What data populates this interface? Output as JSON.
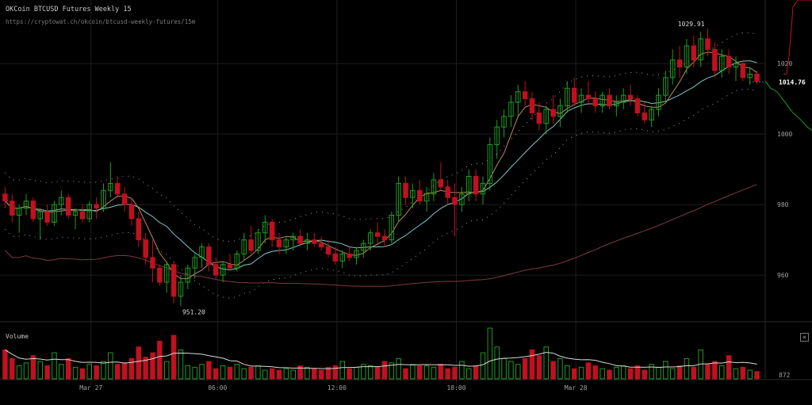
{
  "header": {
    "title": "OKCoin BTCUSD Futures Weekly 15",
    "subtitle": "https://cryptowat.ch/okcoin/btcusd-weekly-futures/15m"
  },
  "volume_panel": {
    "label": "Volume",
    "close_glyph": "×",
    "axis_label": "872"
  },
  "colors": {
    "background": "#000000",
    "grid": "#1e1e1e",
    "up": "#1f9c1f",
    "down": "#c0111f",
    "ma_short": "#b98a5e",
    "ma_mid": "#7fc6c6",
    "ma_long": "#7a3a44",
    "envelope": "#9a9a9a",
    "volume_ma": "#d8d8d8",
    "depth_bid": "#1f9c1f",
    "depth_ask": "#c0111f"
  },
  "chart_data": {
    "type": "candlestick",
    "interval": "15m",
    "y_axis": {
      "ticks": [
        960,
        980,
        1000,
        1020
      ],
      "range": [
        947,
        1038
      ]
    },
    "x_axis": {
      "ticks": [
        "Mar 27",
        "06:00",
        "12:00",
        "18:00",
        "Mar 28"
      ]
    },
    "annotations": {
      "high_label": "1029.91",
      "low_label": "951.20",
      "last_price": "1014.76"
    },
    "candles": [
      [
        983,
        985,
        979,
        981
      ],
      [
        981,
        983,
        975,
        977
      ],
      [
        977,
        980,
        972,
        979
      ],
      [
        979,
        983,
        977,
        981
      ],
      [
        981,
        982,
        975,
        976
      ],
      [
        976,
        979,
        970,
        978
      ],
      [
        978,
        980,
        974,
        975
      ],
      [
        975,
        981,
        974,
        980
      ],
      [
        980,
        984,
        977,
        982
      ],
      [
        982,
        983,
        976,
        977
      ],
      [
        977,
        979,
        973,
        978
      ],
      [
        978,
        980,
        975,
        976
      ],
      [
        976,
        981,
        975,
        980
      ],
      [
        980,
        982,
        976,
        979
      ],
      [
        979,
        986,
        978,
        984
      ],
      [
        984,
        992,
        982,
        986
      ],
      [
        986,
        988,
        982,
        983
      ],
      [
        983,
        985,
        978,
        980
      ],
      [
        980,
        982,
        974,
        976
      ],
      [
        976,
        978,
        968,
        970
      ],
      [
        970,
        972,
        963,
        965
      ],
      [
        965,
        970,
        958,
        962
      ],
      [
        962,
        963,
        957,
        958
      ],
      [
        958,
        964,
        955,
        963
      ],
      [
        963,
        964,
        952,
        954
      ],
      [
        954,
        960,
        951.2,
        958
      ],
      [
        958,
        963,
        956,
        962
      ],
      [
        962,
        966,
        959,
        965
      ],
      [
        965,
        969,
        962,
        968
      ],
      [
        968,
        969,
        961,
        963
      ],
      [
        963,
        965,
        959,
        960
      ],
      [
        960,
        964,
        958,
        963
      ],
      [
        963,
        966,
        961,
        962
      ],
      [
        962,
        967,
        961,
        966
      ],
      [
        966,
        972,
        964,
        970
      ],
      [
        970,
        974,
        966,
        967
      ],
      [
        967,
        973,
        966,
        972
      ],
      [
        972,
        977,
        969,
        975
      ],
      [
        975,
        976,
        968,
        970
      ],
      [
        970,
        972,
        966,
        968
      ],
      [
        968,
        971,
        966,
        970
      ],
      [
        970,
        972,
        967,
        971
      ],
      [
        971,
        973,
        968,
        969
      ],
      [
        969,
        972,
        967,
        970
      ],
      [
        970,
        972,
        968,
        969
      ],
      [
        969,
        971,
        967,
        968
      ],
      [
        968,
        970,
        965,
        966
      ],
      [
        966,
        968,
        963,
        964
      ],
      [
        964,
        967,
        962,
        966
      ],
      [
        966,
        968,
        964,
        965
      ],
      [
        965,
        968,
        963,
        967
      ],
      [
        967,
        970,
        965,
        969
      ],
      [
        969,
        973,
        967,
        972
      ],
      [
        972,
        975,
        969,
        971
      ],
      [
        971,
        973,
        968,
        970
      ],
      [
        970,
        978,
        969,
        977
      ],
      [
        977,
        988,
        975,
        986
      ],
      [
        986,
        988,
        980,
        982
      ],
      [
        982,
        986,
        979,
        984
      ],
      [
        984,
        987,
        980,
        981
      ],
      [
        981,
        985,
        978,
        983
      ],
      [
        983,
        989,
        981,
        987
      ],
      [
        987,
        992,
        984,
        985
      ],
      [
        985,
        987,
        980,
        982
      ],
      [
        982,
        986,
        971,
        980
      ],
      [
        980,
        985,
        978,
        983
      ],
      [
        983,
        990,
        981,
        988
      ],
      [
        988,
        990,
        981,
        983
      ],
      [
        983,
        988,
        980,
        986
      ],
      [
        986,
        999,
        984,
        997
      ],
      [
        997,
        1004,
        993,
        1002
      ],
      [
        1002,
        1007,
        999,
        1005
      ],
      [
        1005,
        1011,
        1002,
        1009
      ],
      [
        1009,
        1014,
        1005,
        1012
      ],
      [
        1012,
        1015,
        1008,
        1010
      ],
      [
        1010,
        1012,
        1004,
        1006
      ],
      [
        1006,
        1009,
        1001,
        1003
      ],
      [
        1003,
        1008,
        1000,
        1007
      ],
      [
        1007,
        1011,
        1003,
        1005
      ],
      [
        1005,
        1010,
        1002,
        1008
      ],
      [
        1008,
        1015,
        1006,
        1013
      ],
      [
        1013,
        1016,
        1008,
        1009
      ],
      [
        1009,
        1013,
        1006,
        1011
      ],
      [
        1011,
        1015,
        1008,
        1010
      ],
      [
        1010,
        1012,
        1006,
        1008
      ],
      [
        1008,
        1012,
        1006,
        1011
      ],
      [
        1011,
        1013,
        1007,
        1008
      ],
      [
        1008,
        1011,
        1005,
        1009
      ],
      [
        1009,
        1013,
        1007,
        1011
      ],
      [
        1011,
        1014,
        1008,
        1010
      ],
      [
        1010,
        1011,
        1005,
        1006
      ],
      [
        1006,
        1009,
        1003,
        1004
      ],
      [
        1004,
        1008,
        1002,
        1007
      ],
      [
        1007,
        1013,
        1005,
        1011
      ],
      [
        1011,
        1018,
        1009,
        1016
      ],
      [
        1016,
        1024,
        1014,
        1021
      ],
      [
        1021,
        1025,
        1016,
        1019
      ],
      [
        1019,
        1027,
        1017,
        1025
      ],
      [
        1025,
        1028,
        1019,
        1021
      ],
      [
        1021,
        1029,
        1019,
        1027
      ],
      [
        1027,
        1029.91,
        1022,
        1024
      ],
      [
        1024,
        1026,
        1016,
        1018
      ],
      [
        1018,
        1024,
        1016,
        1022
      ],
      [
        1022,
        1024,
        1017,
        1019
      ],
      [
        1019,
        1022,
        1015,
        1020
      ],
      [
        1020,
        1021,
        1015,
        1016
      ],
      [
        1016,
        1019,
        1014,
        1017
      ],
      [
        1017,
        1018,
        1014,
        1015
      ]
    ],
    "volume": [
      20,
      14,
      9,
      11,
      16,
      12,
      9,
      18,
      10,
      14,
      8,
      7,
      10,
      9,
      12,
      18,
      10,
      11,
      14,
      22,
      15,
      18,
      26,
      12,
      30,
      20,
      9,
      8,
      10,
      12,
      7,
      9,
      8,
      10,
      7,
      8,
      9,
      6,
      7,
      6,
      7,
      6,
      9,
      8,
      7,
      6,
      8,
      9,
      12,
      7,
      8,
      10,
      9,
      8,
      12,
      11,
      14,
      7,
      10,
      9,
      9,
      8,
      10,
      7,
      8,
      12,
      7,
      9,
      18,
      35,
      22,
      14,
      12,
      10,
      14,
      20,
      16,
      22,
      12,
      14,
      9,
      7,
      8,
      11,
      9,
      7,
      6,
      8,
      9,
      7,
      9,
      6,
      10,
      8,
      12,
      7,
      9,
      14,
      8,
      20,
      10,
      12,
      9,
      16,
      7,
      8,
      6,
      5
    ],
    "volume_ma_line": true,
    "moving_averages": [
      "short",
      "mid",
      "long"
    ]
  }
}
